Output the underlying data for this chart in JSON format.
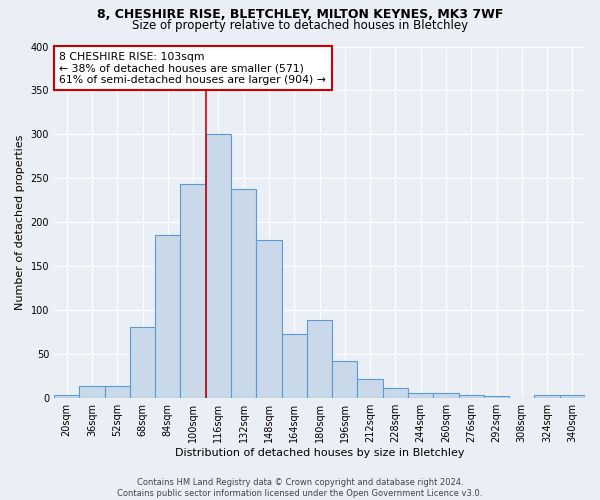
{
  "title1": "8, CHESHIRE RISE, BLETCHLEY, MILTON KEYNES, MK3 7WF",
  "title2": "Size of property relative to detached houses in Bletchley",
  "xlabel": "Distribution of detached houses by size in Bletchley",
  "ylabel": "Number of detached properties",
  "categories": [
    "20sqm",
    "36sqm",
    "52sqm",
    "68sqm",
    "84sqm",
    "100sqm",
    "116sqm",
    "132sqm",
    "148sqm",
    "164sqm",
    "180sqm",
    "196sqm",
    "212sqm",
    "228sqm",
    "244sqm",
    "260sqm",
    "276sqm",
    "292sqm",
    "308sqm",
    "324sqm",
    "340sqm"
  ],
  "values": [
    3,
    13,
    13,
    81,
    185,
    243,
    300,
    238,
    180,
    73,
    88,
    42,
    21,
    11,
    5,
    5,
    3,
    2,
    0,
    3,
    3
  ],
  "bar_color": "#c9d9ea",
  "bar_edge_color": "#5b9bd5",
  "annotation_line1": "8 CHESHIRE RISE: 103sqm",
  "annotation_line2": "← 38% of detached houses are smaller (571)",
  "annotation_line3": "61% of semi-detached houses are larger (904) →",
  "annotation_box_facecolor": "#ffffff",
  "annotation_box_edgecolor": "#cc0000",
  "vline_color": "#cc0000",
  "background_color": "#eaeff6",
  "grid_color": "#ffffff",
  "footer_line1": "Contains HM Land Registry data © Crown copyright and database right 2024.",
  "footer_line2": "Contains public sector information licensed under the Open Government Licence v3.0.",
  "ylim": [
    0,
    400
  ],
  "ref_bar_index": 6,
  "title1_fontsize": 9,
  "title2_fontsize": 8.5,
  "ylabel_fontsize": 8,
  "xlabel_fontsize": 8,
  "tick_fontsize": 7,
  "footer_fontsize": 6
}
